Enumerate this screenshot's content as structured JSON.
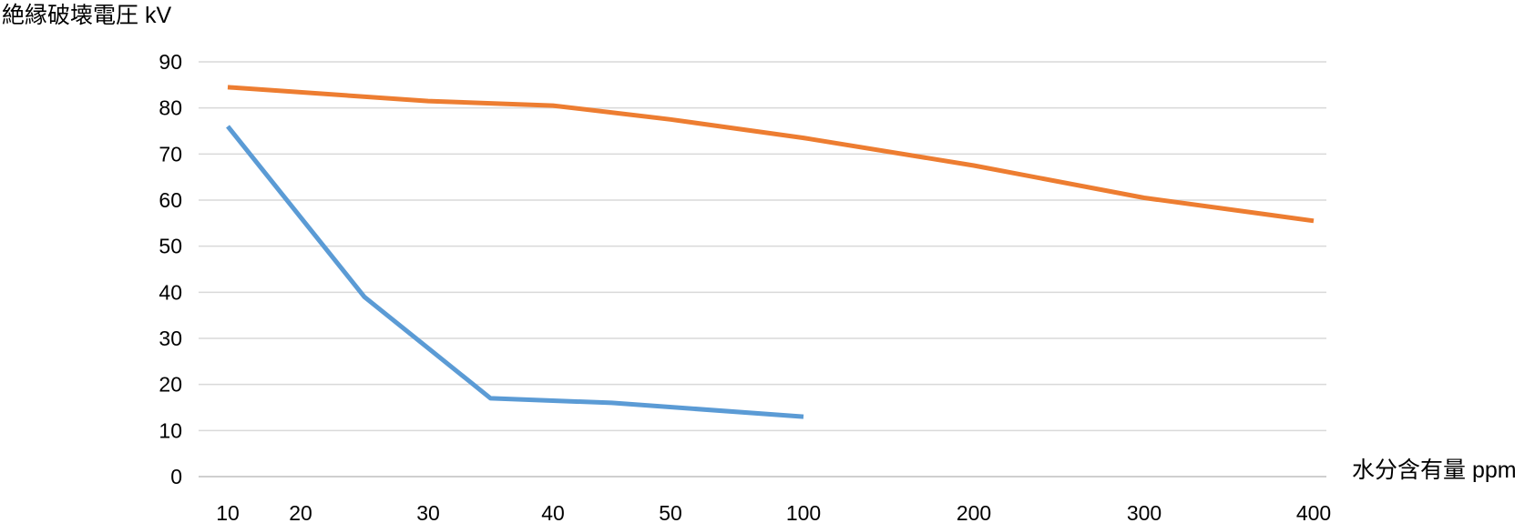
{
  "chart_data": {
    "type": "line",
    "title": "",
    "ylabel": "絶縁破壊電圧 kV",
    "xlabel": "水分含有量 ppm",
    "x_tick_labels": [
      "10",
      "20",
      "30",
      "40",
      "50",
      "100",
      "200",
      "300",
      "400"
    ],
    "ylim": [
      0,
      90
    ],
    "yticks": [
      0,
      10,
      20,
      30,
      40,
      50,
      60,
      70,
      80,
      90
    ],
    "grid": true,
    "legend": "none",
    "series": [
      {
        "color": "#ED7D31",
        "x": [
          10,
          30,
          40,
          50,
          100,
          200,
          300,
          400
        ],
        "y": [
          84.5,
          81.5,
          80.5,
          77.5,
          73.5,
          67.5,
          60.5,
          55.5
        ]
      },
      {
        "color": "#5B9BD5",
        "x": [
          10,
          25,
          35,
          45,
          100
        ],
        "y": [
          76,
          39,
          17,
          16,
          13
        ]
      }
    ]
  }
}
